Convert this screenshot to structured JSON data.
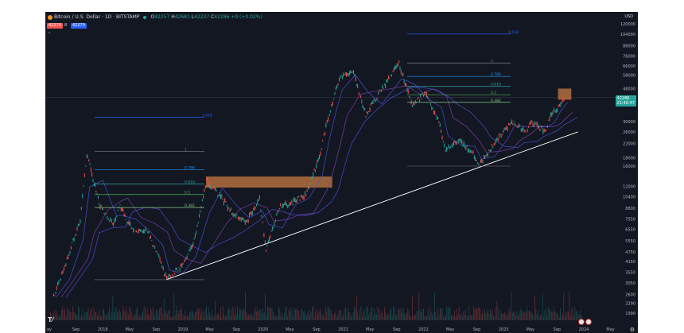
{
  "header": {
    "symbol_text": "Bitcoin / U.S. Dollar · 1D · BITSTAMP",
    "ohlc": [
      {
        "k": "O",
        "v": "42257"
      },
      {
        "k": "H",
        "v": "42681"
      },
      {
        "k": "L",
        "v": "42237"
      },
      {
        "k": "C",
        "v": "42286 +9 (+0.02%)"
      }
    ],
    "bid": "42270",
    "spread": "8",
    "ask": "42279"
  },
  "currency": "USD",
  "last_price": {
    "value": "42286",
    "countdown": "21:40:47"
  },
  "colors": {
    "background": "#131722",
    "up": "#26a69a",
    "down": "#ef5350",
    "trendline": "#ffffff",
    "zone": "#c87941",
    "ma1": "#4a4fd4",
    "ma2": "#7b3fa6"
  },
  "chart_data": {
    "type": "line",
    "y_scale": "log",
    "ylim": [
      1800,
      130000
    ],
    "x_ticks": [
      "ay",
      "Sep",
      "2018",
      "May",
      "Sep",
      "2019",
      "May",
      "Sep",
      "2020",
      "May",
      "Sep",
      "2021",
      "May",
      "Sep",
      "2022",
      "May",
      "Sep",
      "2023",
      "May",
      "Sep",
      "2024",
      "May"
    ],
    "y_ticks": [
      "120000",
      "104000",
      "88000",
      "76000",
      "66000",
      "58000",
      "48000",
      "38000",
      "30000",
      "26000",
      "22000",
      "18000",
      "16000",
      "12000",
      "10400",
      "8800",
      "7550",
      "6550",
      "5550",
      "4750",
      "4150",
      "3550",
      "3050",
      "2600",
      "2290",
      "1990"
    ],
    "price_path": [
      {
        "x": "2017-07",
        "y": 2500
      },
      {
        "x": "2017-09",
        "y": 4200
      },
      {
        "x": "2017-11",
        "y": 7500
      },
      {
        "x": "2017-12",
        "y": 19000
      },
      {
        "x": "2018-02",
        "y": 9000
      },
      {
        "x": "2018-04",
        "y": 7000
      },
      {
        "x": "2018-05",
        "y": 9000
      },
      {
        "x": "2018-07",
        "y": 6300
      },
      {
        "x": "2018-09",
        "y": 6500
      },
      {
        "x": "2018-11",
        "y": 4200
      },
      {
        "x": "2018-12",
        "y": 3200
      },
      {
        "x": "2019-02",
        "y": 3800
      },
      {
        "x": "2019-04",
        "y": 5200
      },
      {
        "x": "2019-06",
        "y": 13000
      },
      {
        "x": "2019-08",
        "y": 10500
      },
      {
        "x": "2019-10",
        "y": 8200
      },
      {
        "x": "2019-12",
        "y": 7200
      },
      {
        "x": "2020-02",
        "y": 10000
      },
      {
        "x": "2020-03",
        "y": 4900
      },
      {
        "x": "2020-05",
        "y": 9000
      },
      {
        "x": "2020-07",
        "y": 9500
      },
      {
        "x": "2020-09",
        "y": 10800
      },
      {
        "x": "2020-11",
        "y": 18000
      },
      {
        "x": "2020-12",
        "y": 28000
      },
      {
        "x": "2021-01",
        "y": 40000
      },
      {
        "x": "2021-02",
        "y": 55000
      },
      {
        "x": "2021-04",
        "y": 62000
      },
      {
        "x": "2021-06",
        "y": 33000
      },
      {
        "x": "2021-08",
        "y": 45000
      },
      {
        "x": "2021-11",
        "y": 68000
      },
      {
        "x": "2022-01",
        "y": 38000
      },
      {
        "x": "2022-03",
        "y": 45000
      },
      {
        "x": "2022-05",
        "y": 30000
      },
      {
        "x": "2022-06",
        "y": 20000
      },
      {
        "x": "2022-08",
        "y": 23000
      },
      {
        "x": "2022-10",
        "y": 19500
      },
      {
        "x": "2022-11",
        "y": 16000
      },
      {
        "x": "2023-01",
        "y": 21000
      },
      {
        "x": "2023-03",
        "y": 27000
      },
      {
        "x": "2023-04",
        "y": 30000
      },
      {
        "x": "2023-06",
        "y": 26000
      },
      {
        "x": "2023-07",
        "y": 30000
      },
      {
        "x": "2023-09",
        "y": 26000
      },
      {
        "x": "2023-10",
        "y": 34000
      },
      {
        "x": "2023-11",
        "y": 37000
      },
      {
        "x": "2023-12",
        "y": 42286
      }
    ],
    "fib_left": [
      {
        "label": "1.618",
        "value": 32000
      },
      {
        "label": "1",
        "value": 19700
      },
      {
        "label": "0.786",
        "value": 15200
      },
      {
        "label": "0.618",
        "value": 12400
      },
      {
        "label": "0.5",
        "value": 10700
      },
      {
        "label": "0.382",
        "value": 8900
      }
    ],
    "fib_right": [
      {
        "label": "1.618",
        "value": 104000
      },
      {
        "label": "1",
        "value": 69000
      },
      {
        "label": "0.786",
        "value": 57000
      },
      {
        "label": "0.618",
        "value": 49500
      },
      {
        "label": "0.5",
        "value": 44000
      },
      {
        "label": "0.382",
        "value": 39500
      }
    ],
    "zones": [
      {
        "from": "2019-06",
        "to": "2021-01",
        "low": 11800,
        "high": 13800
      },
      {
        "from": "2023-11",
        "to": "2024-01",
        "low": 41000,
        "high": 48000
      }
    ],
    "trendline": [
      {
        "x": "2018-12",
        "y": 3200
      },
      {
        "x": "2024-02",
        "y": 26000
      }
    ]
  }
}
